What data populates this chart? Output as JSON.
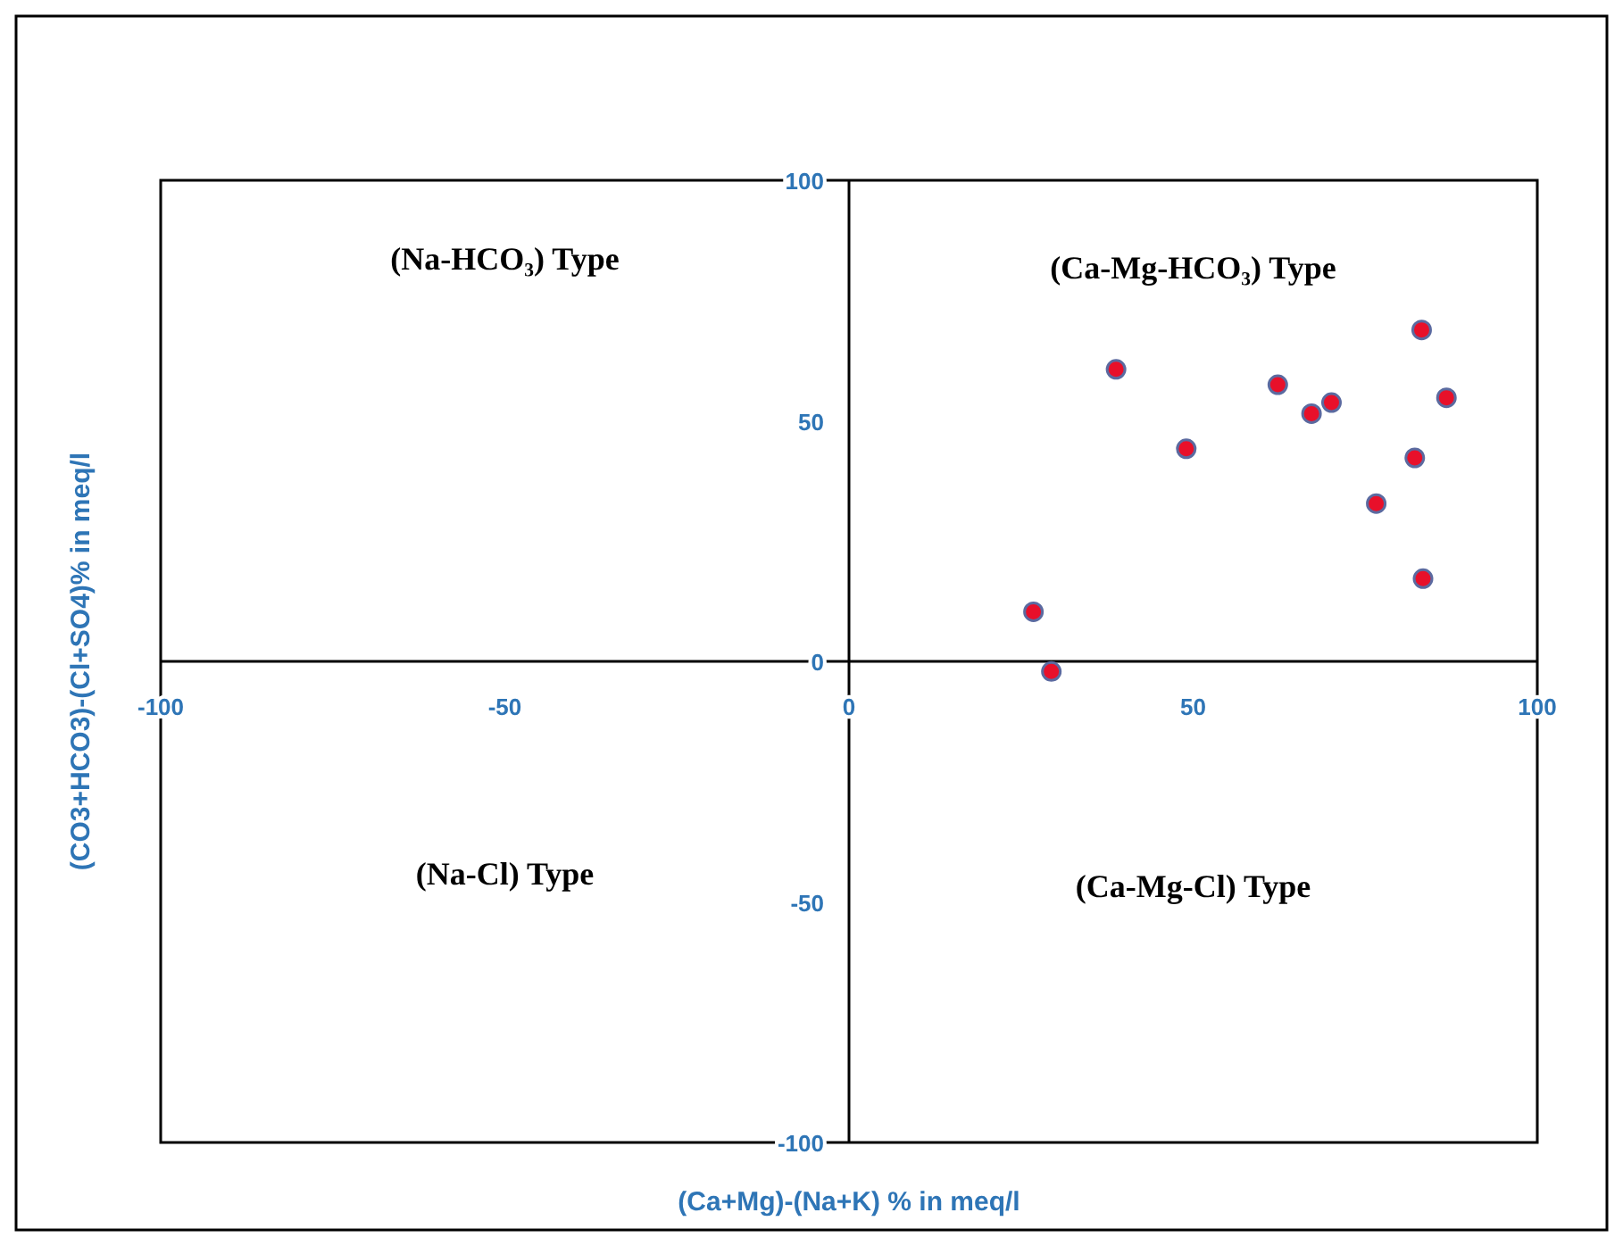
{
  "chart_data": {
    "type": "scatter",
    "xlabel": "(Ca+Mg)-(Na+K) % in meq/l",
    "ylabel": "(CO3+HCO3)-(Cl+SO4)% in meq/l",
    "x": [
      38.8,
      26.8,
      29.4,
      49,
      62.3,
      67.2,
      70.1,
      83.2,
      86.8,
      82.2,
      76.6,
      83.4
    ],
    "series": [
      {
        "color": "#e8102a",
        "values": [
          60.7,
          10.3,
          -2.1,
          44.2,
          57.5,
          51.5,
          53.8,
          68.9,
          54.8,
          42.3,
          32.8,
          17.2
        ]
      }
    ],
    "xlim": [
      -100,
      100
    ],
    "ylim": [
      -100,
      100
    ],
    "xticks": [
      -100,
      -50,
      0,
      50,
      100
    ],
    "yticks": [
      100,
      50,
      0,
      -50,
      -100
    ],
    "marker": "circle",
    "grid": false,
    "annotations": [
      "(Na-HCO₃) Type",
      "(Ca-Mg-HCO₃) Type",
      "(Na-Cl) Type",
      "(Ca-Mg-Cl) Type"
    ]
  }
}
